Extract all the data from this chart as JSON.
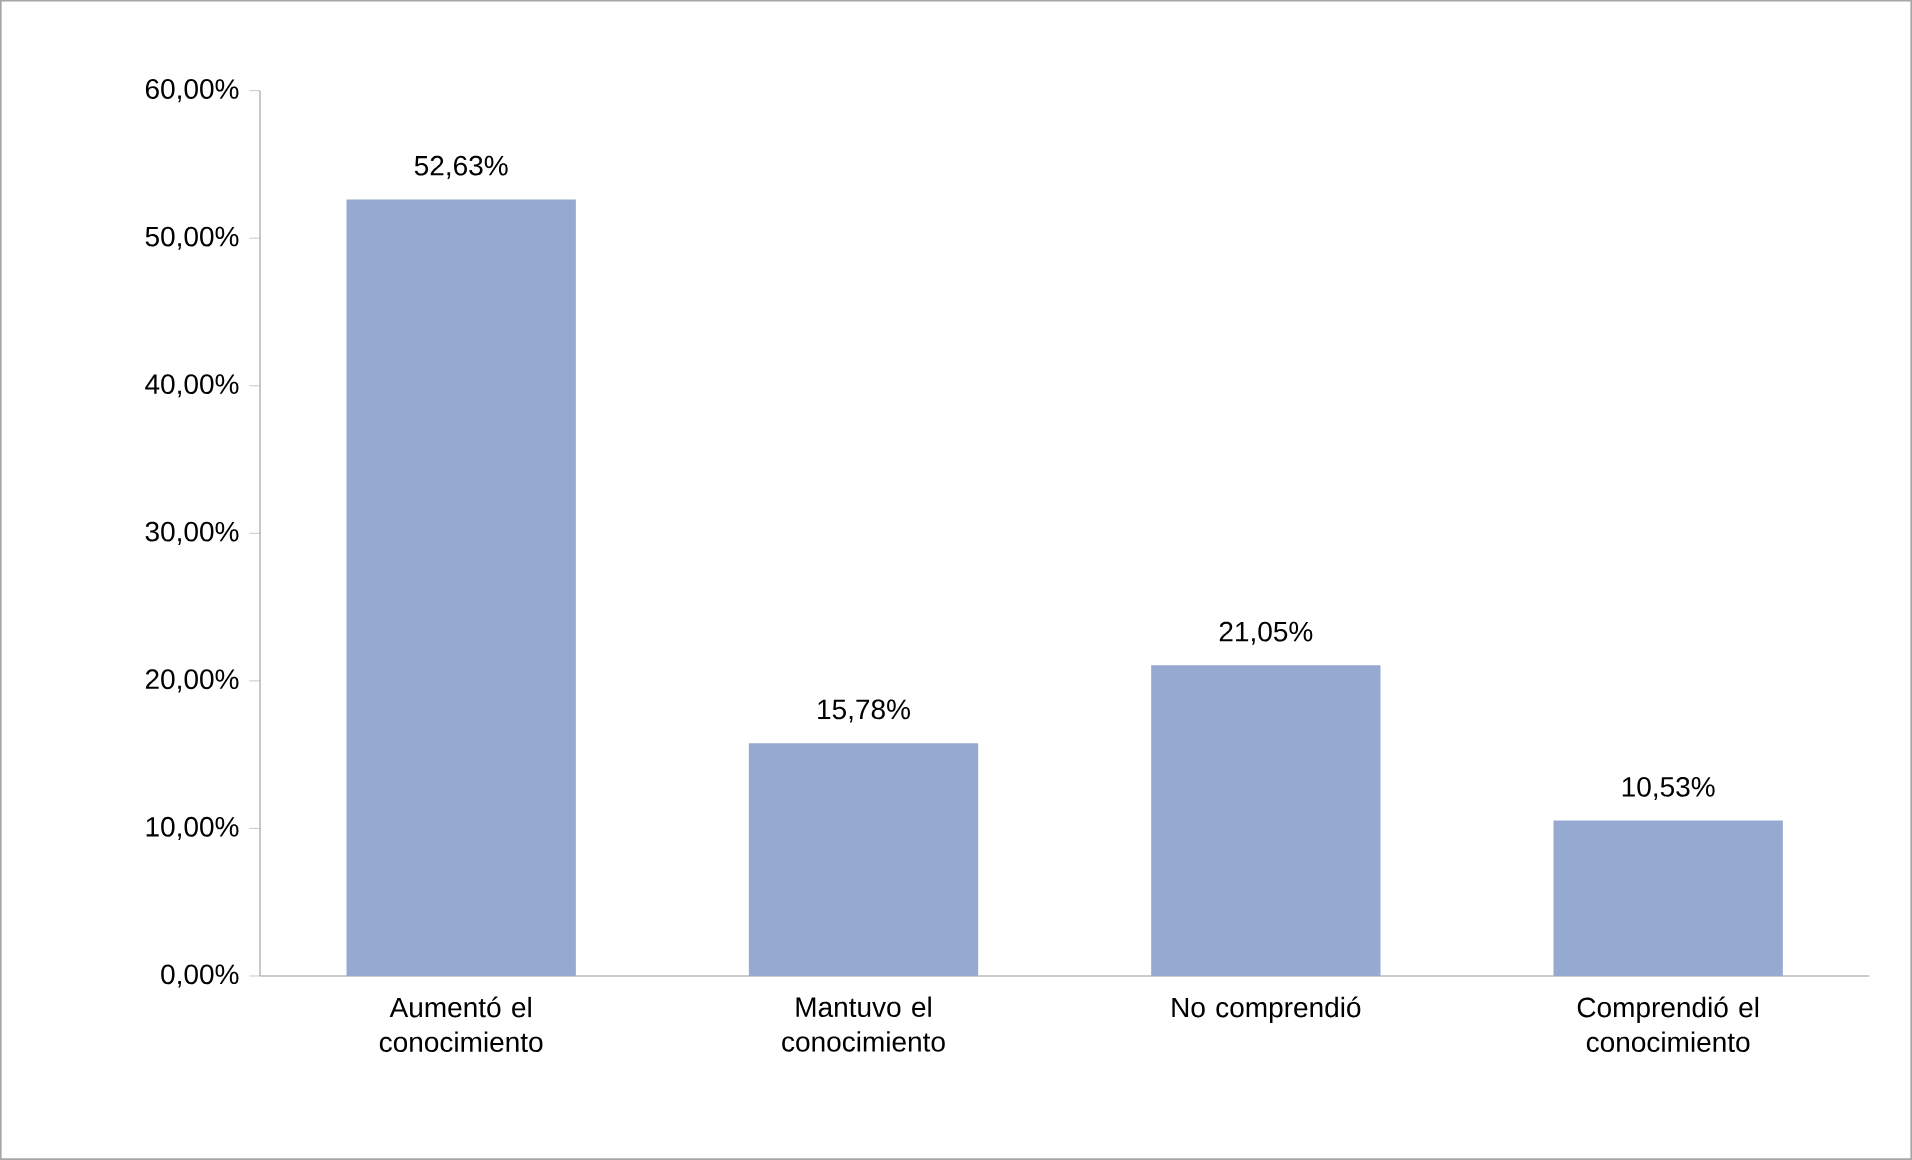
{
  "chart_data": {
    "type": "bar",
    "categories": [
      "Aumentó el conocimiento",
      "Mantuvo el conocimiento",
      "No comprendió",
      "Comprendió el conocimiento"
    ],
    "values": [
      52.63,
      15.78,
      21.05,
      10.53
    ],
    "value_labels": [
      "52,63%",
      "15,78%",
      "21,05%",
      "10,53%"
    ],
    "color": "#95a9d1",
    "ylim": [
      0,
      60
    ],
    "yticks": [
      {
        "value": 0,
        "label": "0,00%"
      },
      {
        "value": 10,
        "label": "10,00%"
      },
      {
        "value": 20,
        "label": "20,00%"
      },
      {
        "value": 30,
        "label": "30,00%"
      },
      {
        "value": 40,
        "label": "40,00%"
      },
      {
        "value": 50,
        "label": "50,00%"
      },
      {
        "value": 60,
        "label": "60,00%"
      }
    ],
    "grid": false
  }
}
